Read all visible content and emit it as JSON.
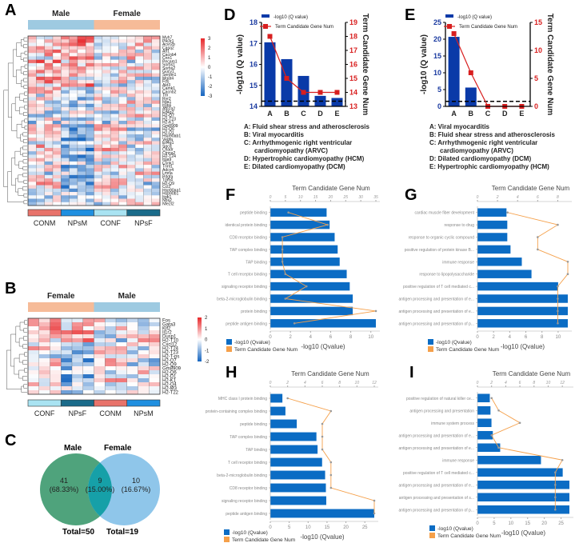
{
  "panels": {
    "A": "A",
    "B": "B",
    "C": "C",
    "D": "D",
    "E": "E",
    "F": "F",
    "G": "G",
    "H": "H",
    "I": "I"
  },
  "colors": {
    "male_bar": "#9ecae1",
    "female_bar": "#f6bb98",
    "CONM": "#e8736b",
    "NPsM": "#1f8fe0",
    "CONF": "#a9e3f2",
    "NPsF": "#1a6b8a",
    "hm_high": "#e8282b",
    "hm_low": "#1565c0",
    "bar_blue": "#0a3aa8",
    "line_red": "#d81f1f",
    "go_bar": "#0b6cc4",
    "go_line": "#f5a04a"
  },
  "heatmap_A": {
    "top_groups": [
      "Male",
      "Female"
    ],
    "bottom_groups": [
      "CONM",
      "NPsM",
      "CONF",
      "NPsF"
    ],
    "scale_ticks": [
      "3",
      "2",
      "1",
      "0",
      "-1",
      "-2",
      "-3"
    ],
    "genes": [
      "Myh7",
      "Pik3r1",
      "Acvr2b",
      "Casq2",
      "Atf1",
      "Cacnb4",
      "Cnn1",
      "Pecam1",
      "Sorbs1",
      "Sorbs2",
      "Gucy1",
      "Serpin1",
      "Mgat4",
      "Fos",
      "Akt3",
      "Camk1",
      "Cacnb2",
      "Ttn",
      "Ryr2",
      "Itga1",
      "Itgb6",
      "Atp2a2",
      "Eif4g2",
      "H2-Q7",
      "H2-T23",
      "H2-K1",
      "Gm8909",
      "H2-Q6",
      "H2-D1",
      "Hsp90ab1",
      "Vegfa",
      "Eif4g1",
      "Sgcd",
      "Cxadr",
      "Ctnna2",
      "H2-T24",
      "Itga9",
      "Csnk1",
      "Tnnt1",
      "Adcy4",
      "Lmna",
      "Pdgfa",
      "Tpm4",
      "H2-Q9",
      "Ccl2",
      "Hsp90aa1",
      "Hsp90b1",
      "Itgb1",
      "Nos2",
      "Nfe2l2"
    ]
  },
  "heatmap_B": {
    "top_groups": [
      "Female",
      "Male"
    ],
    "bottom_groups": [
      "CONF",
      "NPsF",
      "CONM",
      "NPsM"
    ],
    "scale_ticks": [
      "2",
      "1",
      "0",
      "-1",
      "-2"
    ],
    "genes": [
      "Fos",
      "Gata3",
      "Klf2",
      "Il1r2",
      "Dusp1",
      "H2-T10",
      "Cxcl12",
      "H2-T24",
      "H2-T23",
      "H2-T-ps",
      "H2-Q7",
      "H2-Q9",
      "Gm8909",
      "H2-Q6",
      "H2-D1",
      "H2-K1",
      "H2-Q4",
      "H2-M3",
      "H2-T22"
    ]
  },
  "venn": {
    "left_label": "Male",
    "right_label": "Female",
    "left_count": "41",
    "left_pct": "(68.33%)",
    "overlap_count": "9",
    "overlap_pct": "(15.00%)",
    "right_count": "10",
    "right_pct": "(16.67%)",
    "left_total": "Total=50",
    "right_total": "Total=19",
    "left_color": "#4fa37c",
    "right_color": "#8fc6ea",
    "overlap_color": "#16a0a8"
  },
  "chart_data": [
    {
      "id": "D",
      "type": "bar+line",
      "categories": [
        "A",
        "B",
        "C",
        "D",
        "E"
      ],
      "series": [
        {
          "name": "-log10 (Q value)",
          "axis": "left",
          "values": [
            17.05,
            16.25,
            15.45,
            14.5,
            14.4
          ]
        },
        {
          "name": "Term Candidate Gene Num",
          "axis": "right",
          "values": [
            18,
            15,
            14,
            14,
            14
          ]
        }
      ],
      "ylabel": "-log10 (Q value)",
      "y2label": "Term Candidate Gene Num",
      "ylim": [
        14,
        18
      ],
      "y2lim": [
        13,
        19
      ],
      "yticks": [
        14,
        15,
        16,
        17,
        18
      ],
      "y2ticks": [
        13,
        14,
        15,
        16,
        17,
        18,
        19
      ],
      "threshold": 14.25,
      "legend": "top",
      "key": [
        "A: Fluid shear stress and atherosclerosis",
        "B: Viral myocarditis",
        "C: Arrhythmogenic right ventricular",
        "cardiomyopathy (ARVC)",
        "D: Hypertrophic cardiomyopathy (HCM)",
        "E: Dilated cardiomyopathy (DCM)"
      ]
    },
    {
      "id": "E",
      "type": "bar+line",
      "categories": [
        "A",
        "B",
        "C",
        "D",
        "E"
      ],
      "series": [
        {
          "name": "-log10 (Q value)",
          "axis": "left",
          "values": [
            20.7,
            5.6,
            0,
            0,
            0
          ]
        },
        {
          "name": "Term Candidate Gene Num",
          "axis": "right",
          "values": [
            13,
            6,
            0,
            0,
            0
          ]
        }
      ],
      "ylabel": "-log10 (Q value)",
      "y2label": "Term Candidate Gene Num",
      "ylim": [
        0,
        25
      ],
      "y2lim": [
        0,
        15
      ],
      "yticks": [
        0,
        5,
        10,
        15,
        20,
        25
      ],
      "y2ticks": [
        0,
        5,
        10,
        15
      ],
      "threshold": 1.5,
      "legend": "top",
      "key": [
        "A: Viral myocarditis",
        "B: Fluid shear stress and atherosclerosis",
        "C: Arrhythmogenic right ventricular",
        "cardiomyopathy (ARVC)",
        "D: Dilated cardiomyopathy (DCM)",
        "E: Hypertrophic cardiomyopathy (HCM)"
      ]
    },
    {
      "id": "F",
      "type": "hbar+line",
      "categories": [
        "peptide binding",
        "identical protein binding",
        "CD8 receptor binding",
        "TAP complex binding",
        "TAP binding",
        "T cell receptor binding",
        "signaling receptor binding",
        "beta-2-microglobulin binding",
        "protein binding",
        "peptide antigen binding"
      ],
      "series": [
        {
          "name": "-log10 (Qvalue)",
          "values": [
            5.6,
            5.9,
            6.4,
            6.7,
            6.9,
            7.6,
            7.9,
            8.2,
            8.2,
            10.5
          ]
        },
        {
          "name": "Term Candidate Gene Num",
          "values": [
            6,
            19,
            4,
            4,
            4,
            5,
            12,
            5,
            35,
            8
          ]
        }
      ],
      "xlabel": "-log10 (Qvalue)",
      "x2label": "Term Candidate Gene Num",
      "xlim": [
        0,
        10.5
      ],
      "xticks": [
        0,
        2,
        4,
        6,
        8,
        10
      ],
      "x2lim": [
        0,
        35
      ],
      "x2ticks": [
        0,
        5,
        10,
        15,
        20,
        25,
        30,
        35
      ],
      "legend": "bottom-left"
    },
    {
      "id": "G",
      "type": "hbar+line",
      "categories": [
        "cardiac muscle fiber development",
        "response to drug",
        "response to organic cyclic compound",
        "positive regulation of protein kinase B...",
        "immune response",
        "response to lipopolysaccharide",
        "positive regulation of T cell mediated c...",
        "antigen processing and presentation of e...",
        "antigen processing and presentation of e...",
        "antigen processing and presentation of p..."
      ],
      "series": [
        {
          "name": "-log10 (Qvalue)",
          "values": [
            3.6,
            3.7,
            3.7,
            4.1,
            5.5,
            6.7,
            10,
            11.2,
            11.2,
            11.2
          ]
        },
        {
          "name": "Term Candidate Gene Num",
          "values": [
            3,
            8,
            6,
            6,
            9,
            9,
            8,
            8,
            8,
            8
          ]
        }
      ],
      "xlabel": "-log10 (Qvalue)",
      "x2label": "Term Candidate Gene Num",
      "xlim": [
        0,
        11.2
      ],
      "xticks": [
        0,
        2,
        4,
        6,
        8,
        10
      ],
      "x2lim": [
        0,
        9
      ],
      "x2ticks": [
        0,
        2,
        4,
        6,
        8
      ],
      "legend": "bottom-left"
    },
    {
      "id": "H",
      "type": "hbar+line",
      "categories": [
        "MHC class I protein binding",
        "protein-containing complex binding",
        "peptide binding",
        "TAP complex binding",
        "TAP binding",
        "T cell receptor binding",
        "beta-2-microglobulin binding",
        "CD8 receptor binding",
        "signaling receptor binding",
        "peptide antigen binding"
      ],
      "series": [
        {
          "name": "-log10 (Qvalue)",
          "values": [
            3.2,
            4,
            7,
            12.2,
            12.5,
            13.7,
            14.5,
            14.7,
            14.8,
            27.5
          ]
        },
        {
          "name": "Term Candidate Gene Num",
          "values": [
            2,
            7,
            6,
            6,
            6,
            7,
            7,
            7,
            12,
            12
          ]
        }
      ],
      "xlabel": "-log10 (Qvalue)",
      "x2label": "Term Candidate Gene Num",
      "xlim": [
        0,
        27.5
      ],
      "xticks": [
        0,
        5,
        10,
        15,
        20,
        25
      ],
      "x2lim": [
        0,
        12
      ],
      "x2ticks": [
        0,
        2,
        4,
        6,
        8,
        10,
        12
      ],
      "legend": "bottom-left"
    },
    {
      "id": "I",
      "type": "hbar+line",
      "categories": [
        "positive regulation of natural killer ce...",
        "antigen processing and presentation",
        "immune system process",
        "antigen processing and presentation of e...",
        "antigen processing and presentation of e...",
        "immune response",
        "positive regulation of T cell mediated c...",
        "antigen processing and presentation of e...",
        "antigen processing and presentation of s...",
        "antigen processing and presentation of p..."
      ],
      "series": [
        {
          "name": "-log10 (Qvalue)",
          "values": [
            3.7,
            3.9,
            4.2,
            4.6,
            6.8,
            19,
            25.5,
            27.5,
            27.5,
            27.5
          ]
        },
        {
          "name": "Term Candidate Gene Num",
          "values": [
            2,
            3,
            6,
            2,
            3,
            12,
            11,
            11,
            11,
            11
          ]
        }
      ],
      "xlabel": "-log10 (Qvalue)",
      "x2label": "Term Candidate Gene Num",
      "xlim": [
        0,
        27.5
      ],
      "xticks": [
        0,
        5,
        10,
        15,
        20,
        25
      ],
      "x2lim": [
        0,
        13
      ],
      "x2ticks": [
        0,
        2,
        4,
        6,
        8,
        10,
        12
      ],
      "legend": "bottom-left"
    }
  ]
}
